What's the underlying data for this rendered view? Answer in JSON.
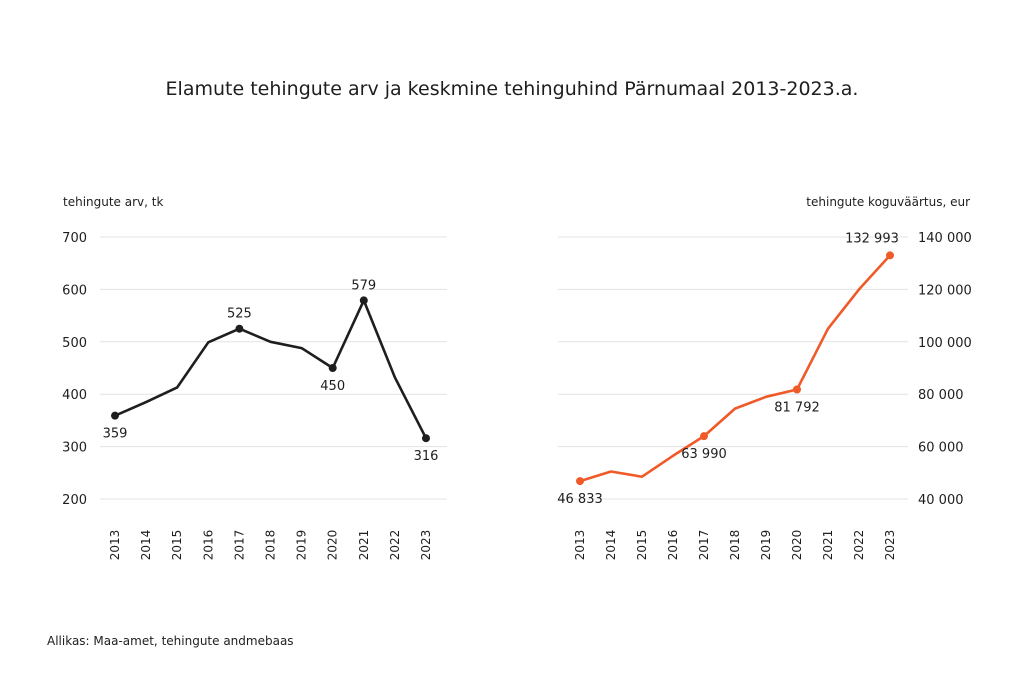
{
  "title": "Elamute tehingute arv ja keskmine tehinguhind Pärnumaal 2013-2023.a.",
  "source": "Allikas: Maa-amet, tehingute andmebaas",
  "chart_data": [
    {
      "type": "line",
      "ylabel": "tehingute arv, tk",
      "ylim": [
        200,
        700
      ],
      "yticks": [
        200,
        300,
        400,
        500,
        600,
        700
      ],
      "ytick_labels": [
        "200",
        "300",
        "400",
        "500",
        "600",
        "700"
      ],
      "y_axis_side": "left",
      "grid": true,
      "color": "#1e1e1e",
      "x": [
        "2013",
        "2014",
        "2015",
        "2016",
        "2017",
        "2018",
        "2019",
        "2020",
        "2021",
        "2022",
        "2023"
      ],
      "values": [
        359,
        385,
        413,
        499,
        525,
        500,
        488,
        450,
        579,
        432,
        316
      ],
      "markers": [
        {
          "index": 0,
          "label": "359",
          "position": "below"
        },
        {
          "index": 4,
          "label": "525",
          "position": "above"
        },
        {
          "index": 7,
          "label": "450",
          "position": "below"
        },
        {
          "index": 8,
          "label": "579",
          "position": "above"
        },
        {
          "index": 10,
          "label": "316",
          "position": "below"
        }
      ]
    },
    {
      "type": "line",
      "ylabel": "tehingute koguväärtus, eur",
      "ylim": [
        40000,
        140000
      ],
      "yticks": [
        40000,
        60000,
        80000,
        100000,
        120000,
        140000
      ],
      "ytick_labels": [
        "40 000",
        "60 000",
        "80 000",
        "100 000",
        "120 000",
        "140 000"
      ],
      "y_axis_side": "right",
      "grid": true,
      "color": "#f05a28",
      "x": [
        "2013",
        "2014",
        "2015",
        "2016",
        "2017",
        "2018",
        "2019",
        "2020",
        "2021",
        "2022",
        "2023"
      ],
      "values": [
        46833,
        50500,
        48500,
        56500,
        63990,
        74500,
        79000,
        81792,
        105000,
        120000,
        132993
      ],
      "markers": [
        {
          "index": 0,
          "label": "46 833",
          "position": "below"
        },
        {
          "index": 4,
          "label": "63 990",
          "position": "below"
        },
        {
          "index": 7,
          "label": "81 792",
          "position": "below"
        },
        {
          "index": 10,
          "label": "132 993",
          "position": "above-left"
        }
      ]
    }
  ]
}
